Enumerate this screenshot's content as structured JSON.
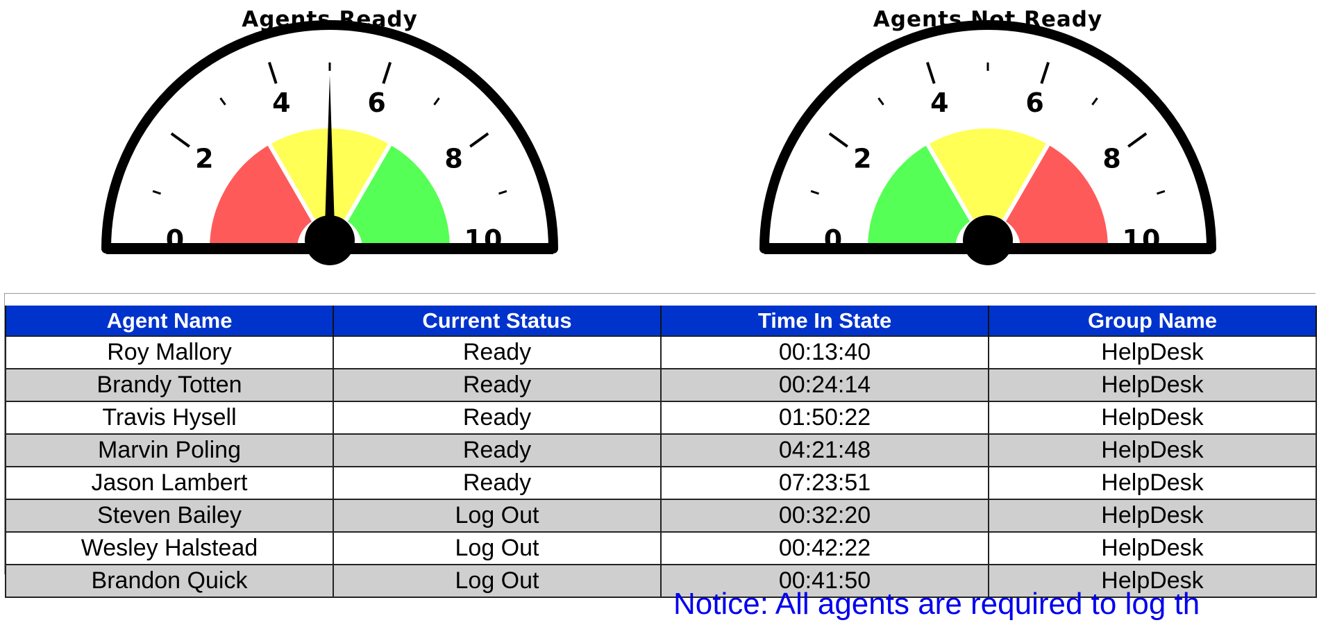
{
  "gauges": [
    {
      "title": "Agents Ready",
      "value": 5.0,
      "min": 0,
      "max": 10,
      "tick_labels": [
        "0",
        "2",
        "4",
        "6",
        "8",
        "10"
      ],
      "bands": [
        {
          "from": 0,
          "to": 3.33,
          "color": "#ff5a5a"
        },
        {
          "from": 3.33,
          "to": 6.67,
          "color": "#ffff55"
        },
        {
          "from": 6.67,
          "to": 10,
          "color": "#55ff55"
        }
      ]
    },
    {
      "title": "Agents Not Ready",
      "value": 0.0,
      "min": 0,
      "max": 10,
      "tick_labels": [
        "0",
        "2",
        "4",
        "6",
        "8",
        "10"
      ],
      "bands": [
        {
          "from": 0,
          "to": 3.33,
          "color": "#55ff55"
        },
        {
          "from": 3.33,
          "to": 6.67,
          "color": "#ffff55"
        },
        {
          "from": 6.67,
          "to": 10,
          "color": "#ff5a5a"
        }
      ]
    }
  ],
  "table": {
    "columns": [
      "Agent Name",
      "Current Status",
      "Time In State",
      "Group Name"
    ],
    "rows": [
      [
        "Roy Mallory",
        "Ready",
        "00:13:40",
        "HelpDesk"
      ],
      [
        "Brandy Totten",
        "Ready",
        "00:24:14",
        "HelpDesk"
      ],
      [
        "Travis Hysell",
        "Ready",
        "01:50:22",
        "HelpDesk"
      ],
      [
        "Marvin Poling",
        "Ready",
        "04:21:48",
        "HelpDesk"
      ],
      [
        "Jason Lambert",
        "Ready",
        "07:23:51",
        "HelpDesk"
      ],
      [
        "Steven Bailey",
        "Log Out",
        "00:32:20",
        "HelpDesk"
      ],
      [
        "Wesley Halstead",
        "Log Out",
        "00:42:22",
        "HelpDesk"
      ],
      [
        "Brandon Quick",
        "Log Out",
        "00:41:50",
        "HelpDesk"
      ]
    ],
    "header_color": "#0033cc",
    "alt_row_color": "#cfcfcf"
  },
  "notice": "Notice: All agents are required to log th"
}
